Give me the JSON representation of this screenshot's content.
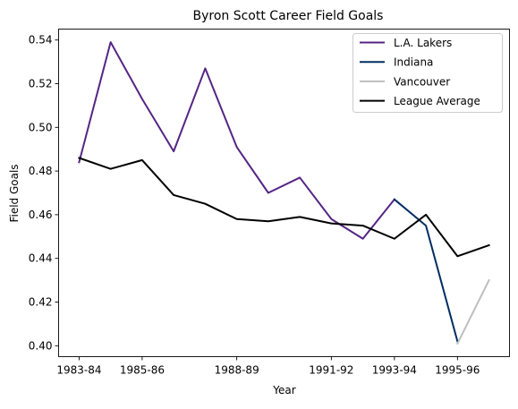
{
  "chart_data": {
    "type": "line",
    "title": "Byron Scott Career Field Goals",
    "xlabel": "Year",
    "ylabel": "Field Goals",
    "categories": [
      "1983-84",
      "1984-85",
      "1985-86",
      "1986-87",
      "1987-88",
      "1988-89",
      "1989-90",
      "1990-91",
      "1991-92",
      "1992-93",
      "1993-94",
      "1994-95",
      "1995-96",
      "1996-97"
    ],
    "xtick_labels": [
      "1983-84",
      "1985-86",
      "1988-89",
      "1991-92",
      "1993-94",
      "1995-96"
    ],
    "ylim": [
      0.395,
      0.545
    ],
    "yticks": [
      0.4,
      0.42,
      0.44,
      0.46,
      0.48,
      0.5,
      0.52,
      0.54
    ],
    "ytick_labels": [
      "0.40",
      "0.42",
      "0.44",
      "0.46",
      "0.48",
      "0.50",
      "0.52",
      "0.54"
    ],
    "grid": false,
    "legend_placement": "top-right",
    "series": [
      {
        "name": "L.A. Lakers",
        "color": "#552583",
        "values": [
          0.484,
          0.539,
          0.513,
          0.489,
          0.527,
          0.491,
          0.47,
          0.477,
          0.458,
          0.449,
          0.467,
          null,
          null,
          null
        ]
      },
      {
        "name": "Indiana",
        "color": "#002D62",
        "values": [
          null,
          null,
          null,
          null,
          null,
          null,
          null,
          null,
          null,
          null,
          0.467,
          0.455,
          0.402,
          null
        ]
      },
      {
        "name": "Vancouver",
        "color": "#BEBEBE",
        "values": [
          null,
          null,
          null,
          null,
          null,
          null,
          null,
          null,
          null,
          null,
          null,
          null,
          0.401,
          0.43
        ]
      },
      {
        "name": "League Average",
        "color": "#000000",
        "values": [
          0.486,
          0.481,
          0.485,
          0.469,
          0.465,
          0.458,
          0.457,
          0.459,
          0.456,
          0.455,
          0.449,
          0.46,
          0.441,
          0.446
        ]
      }
    ]
  }
}
